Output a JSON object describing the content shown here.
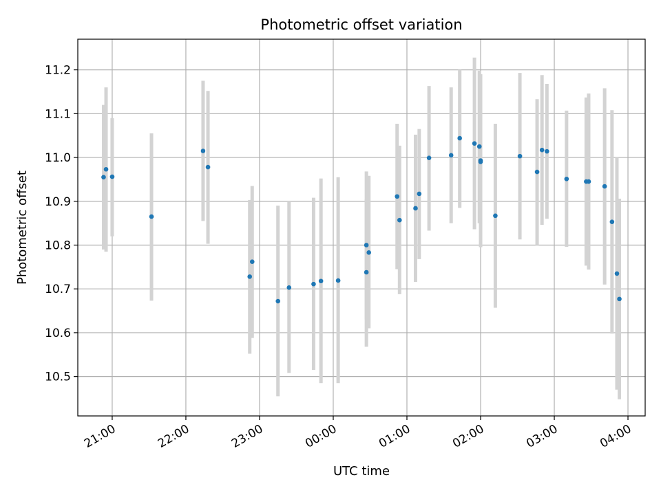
{
  "chart_data": {
    "type": "scatter",
    "title": "Photometric offset variation",
    "xlabel": "UTC time",
    "ylabel": "Photometric offset",
    "grid": true,
    "colors": {
      "point": "#1f77b4",
      "errorbar": "#d3d3d3",
      "grid": "#b0b0b0"
    },
    "x_ticks": [
      "21:00",
      "22:00",
      "23:00",
      "00:00",
      "01:00",
      "02:00",
      "03:00",
      "04:00"
    ],
    "y_ticks": [
      "10.5",
      "10.6",
      "10.7",
      "10.8",
      "10.9",
      "11.0",
      "11.1",
      "11.2"
    ],
    "xlim": [
      "20:32",
      "04:14"
    ],
    "ylim": [
      10.41,
      11.27
    ],
    "points": [
      {
        "t": "20:53",
        "y": 10.955,
        "lo": 10.79,
        "hi": 11.12
      },
      {
        "t": "20:55",
        "y": 10.973,
        "lo": 10.785,
        "hi": 11.16
      },
      {
        "t": "21:00",
        "y": 10.956,
        "lo": 10.82,
        "hi": 11.09
      },
      {
        "t": "21:32",
        "y": 10.865,
        "lo": 10.673,
        "hi": 11.055
      },
      {
        "t": "22:14",
        "y": 11.015,
        "lo": 10.855,
        "hi": 11.175
      },
      {
        "t": "22:18",
        "y": 10.978,
        "lo": 10.803,
        "hi": 11.152
      },
      {
        "t": "22:52",
        "y": 10.728,
        "lo": 10.552,
        "hi": 10.903
      },
      {
        "t": "22:54",
        "y": 10.762,
        "lo": 10.588,
        "hi": 10.935
      },
      {
        "t": "23:15",
        "y": 10.672,
        "lo": 10.455,
        "hi": 10.89
      },
      {
        "t": "23:24",
        "y": 10.703,
        "lo": 10.508,
        "hi": 10.898
      },
      {
        "t": "23:44",
        "y": 10.711,
        "lo": 10.515,
        "hi": 10.908
      },
      {
        "t": "23:50",
        "y": 10.718,
        "lo": 10.485,
        "hi": 10.952
      },
      {
        "t": "00:04",
        "y": 10.719,
        "lo": 10.485,
        "hi": 10.955
      },
      {
        "t": "00:27",
        "y": 10.8,
        "lo": 10.63,
        "hi": 10.968
      },
      {
        "t": "00:27",
        "y": 10.738,
        "lo": 10.568,
        "hi": 10.905
      },
      {
        "t": "00:29",
        "y": 10.783,
        "lo": 10.61,
        "hi": 10.958
      },
      {
        "t": "00:52",
        "y": 10.911,
        "lo": 10.745,
        "hi": 11.077
      },
      {
        "t": "00:54",
        "y": 10.857,
        "lo": 10.688,
        "hi": 11.027
      },
      {
        "t": "01:07",
        "y": 10.884,
        "lo": 10.716,
        "hi": 11.052
      },
      {
        "t": "01:10",
        "y": 10.917,
        "lo": 10.768,
        "hi": 11.065
      },
      {
        "t": "01:18",
        "y": 10.999,
        "lo": 10.833,
        "hi": 11.163
      },
      {
        "t": "01:36",
        "y": 11.005,
        "lo": 10.85,
        "hi": 11.16
      },
      {
        "t": "01:43",
        "y": 11.044,
        "lo": 10.885,
        "hi": 11.2
      },
      {
        "t": "01:55",
        "y": 11.032,
        "lo": 10.836,
        "hi": 11.228
      },
      {
        "t": "01:59",
        "y": 11.025,
        "lo": 10.85,
        "hi": 11.198
      },
      {
        "t": "02:00",
        "y": 10.993,
        "lo": 10.795,
        "hi": 11.19
      },
      {
        "t": "02:00",
        "y": 10.99,
        "lo": 10.81,
        "hi": 11.17
      },
      {
        "t": "02:12",
        "y": 10.867,
        "lo": 10.657,
        "hi": 11.077
      },
      {
        "t": "02:32",
        "y": 11.003,
        "lo": 10.813,
        "hi": 11.193
      },
      {
        "t": "02:46",
        "y": 10.967,
        "lo": 10.8,
        "hi": 11.133
      },
      {
        "t": "02:50",
        "y": 11.017,
        "lo": 10.846,
        "hi": 11.188
      },
      {
        "t": "02:54",
        "y": 11.014,
        "lo": 10.86,
        "hi": 11.168
      },
      {
        "t": "03:10",
        "y": 10.951,
        "lo": 10.796,
        "hi": 11.107
      },
      {
        "t": "03:26",
        "y": 10.945,
        "lo": 10.753,
        "hi": 11.137
      },
      {
        "t": "03:28",
        "y": 10.945,
        "lo": 10.744,
        "hi": 11.146
      },
      {
        "t": "03:41",
        "y": 10.934,
        "lo": 10.71,
        "hi": 11.158
      },
      {
        "t": "03:47",
        "y": 10.853,
        "lo": 10.598,
        "hi": 11.108
      },
      {
        "t": "03:51",
        "y": 10.735,
        "lo": 10.47,
        "hi": 11.0
      },
      {
        "t": "03:53",
        "y": 10.677,
        "lo": 10.448,
        "hi": 10.906
      }
    ]
  }
}
